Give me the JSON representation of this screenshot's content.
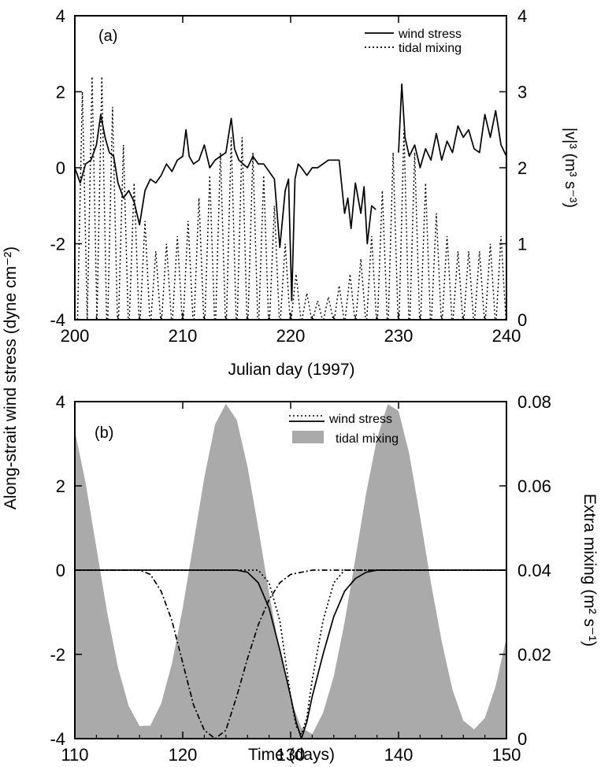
{
  "chart_data": [
    {
      "panel_label": "(a)",
      "type": "line",
      "xlabel": "Julian day (1997)",
      "xlim": [
        200,
        240
      ],
      "x_ticks": [
        200,
        210,
        220,
        230,
        240
      ],
      "ylim": [
        -4,
        4
      ],
      "y_ticks": [
        -4,
        -2,
        0,
        2,
        4
      ],
      "y2label": "|v|³ (m³ s⁻³)",
      "y2lim": [
        0,
        4
      ],
      "y2_ticks": [
        0,
        1,
        2,
        3,
        4
      ],
      "legend": [
        "wind stress",
        "tidal mixing"
      ],
      "legend_position": "top-right",
      "series": [
        {
          "name": "wind stress",
          "axis": "left",
          "style": "solid",
          "segments": [
            {
              "x": [
                200,
                200.5,
                201,
                201.5,
                202,
                202.4,
                202.8,
                203.2,
                203.6,
                204,
                204.5,
                205,
                205.5,
                206,
                206.5,
                207,
                207.5,
                208,
                208.5,
                209,
                209.5,
                210,
                210.3,
                210.6,
                211,
                211.5,
                212,
                212.5,
                213,
                213.5,
                214,
                214.5,
                214.8,
                215.2,
                215.6,
                216,
                216.5,
                217,
                217.5,
                218,
                218.5,
                219,
                219.5,
                219.8,
                220.1,
                220.4,
                220.7,
                221,
                221.5,
                222,
                222.5,
                223,
                223.5,
                224,
                224.5,
                225,
                225.3,
                225.6,
                226,
                226.5,
                226.8,
                227.1,
                227.5,
                227.9
              ],
              "y": [
                0.0,
                -0.4,
                0.1,
                0.2,
                0.6,
                1.4,
                0.8,
                0.4,
                0.3,
                -0.4,
                -0.8,
                -0.6,
                -0.9,
                -1.5,
                -0.6,
                -0.3,
                -0.4,
                -0.2,
                0.1,
                -0.1,
                0.2,
                0.3,
                1.0,
                0.3,
                0.1,
                0.2,
                0.6,
                0.0,
                0.2,
                0.3,
                0.4,
                1.3,
                0.5,
                0.2,
                0.1,
                0.0,
                0.3,
                0.1,
                0.1,
                -0.1,
                -0.3,
                -2.1,
                -0.6,
                -0.3,
                -3.5,
                -0.3,
                0.1,
                0.0,
                -0.2,
                0.0,
                0.0,
                0.1,
                0.2,
                0.2,
                0.2,
                -1.2,
                -0.8,
                -1.6,
                -0.4,
                -1.2,
                -0.5,
                -2.0,
                -1.0,
                -1.1
              ]
            },
            {
              "x": [
                230,
                230.3,
                230.6,
                231,
                231.5,
                232,
                232.5,
                233,
                233.5,
                234,
                234.5,
                235,
                235.5,
                236,
                236.5,
                237,
                237.5,
                238,
                238.5,
                239,
                239.5,
                240
              ],
              "y": [
                0.4,
                2.2,
                0.8,
                0.3,
                0.6,
                0.0,
                0.5,
                0.2,
                0.9,
                0.2,
                0.7,
                0.4,
                1.1,
                0.8,
                1.0,
                0.5,
                0.4,
                1.4,
                0.8,
                1.5,
                0.6,
                0.3
              ]
            }
          ]
        },
        {
          "name": "tidal mixing",
          "axis": "right",
          "style": "dotted",
          "peak_days": [
            200.7,
            201.6,
            202.5,
            203.5,
            204.5,
            205.5,
            206.5,
            207.5,
            208.5,
            209.5,
            210.5,
            211.5,
            212.5,
            213.5,
            214.5,
            215.5,
            216.5,
            217.5,
            218.5,
            219.5,
            220.5,
            221.5,
            222.5,
            223.5,
            224.5,
            225.5,
            226.5,
            227.5,
            228.5,
            229.5,
            230.5,
            231.5,
            232.5,
            233.5,
            234.5,
            235.5,
            236.5,
            237.5,
            238.5,
            239.5
          ],
          "peak_values": [
            3.0,
            3.2,
            3.2,
            2.8,
            2.3,
            1.8,
            1.3,
            0.9,
            1.0,
            1.1,
            1.3,
            1.6,
            1.9,
            2.2,
            2.4,
            2.4,
            2.2,
            1.9,
            1.5,
            1.0,
            0.6,
            0.35,
            0.25,
            0.3,
            0.45,
            0.6,
            0.8,
            1.1,
            1.7,
            2.2,
            2.5,
            2.2,
            1.8,
            1.4,
            1.1,
            0.9,
            0.9,
            0.9,
            1.0,
            1.1
          ]
        }
      ]
    },
    {
      "panel_label": "(b)",
      "type": "line",
      "xlabel": "Time (days)",
      "xlim": [
        110,
        150
      ],
      "x_ticks": [
        110,
        120,
        130,
        140,
        150
      ],
      "ylim": [
        -4,
        4
      ],
      "y_ticks": [
        -4,
        -2,
        0,
        2,
        4
      ],
      "y2label": "Extra mixing (m² s⁻¹)",
      "y2lim": [
        0,
        0.08
      ],
      "y2_ticks": [
        0,
        0.02,
        0.04,
        0.06,
        0.08
      ],
      "legend": [
        "wind stress",
        "tidal mixing"
      ],
      "legend_position": "top-center",
      "series": [
        {
          "name": "tidal mixing",
          "axis": "right",
          "style": "filled-area",
          "x": [
            110,
            111,
            112,
            113,
            114,
            115,
            116,
            117,
            118,
            119,
            120,
            121,
            122,
            123,
            124,
            125,
            126,
            127,
            128,
            129,
            130,
            131,
            132,
            133,
            134,
            135,
            136,
            137,
            138,
            139,
            140,
            141,
            142,
            143,
            144,
            145,
            146,
            147,
            148,
            149,
            150
          ],
          "y": [
            0.0731,
            0.0607,
            0.0453,
            0.0299,
            0.0169,
            0.0077,
            0.003,
            0.0031,
            0.0083,
            0.0178,
            0.031,
            0.0465,
            0.062,
            0.0746,
            0.0795,
            0.0757,
            0.0646,
            0.05,
            0.0346,
            0.0205,
            0.0091,
            0.0026,
            0.0011,
            0.0061,
            0.0148,
            0.0276,
            0.0428,
            0.0583,
            0.0712,
            0.0794,
            0.0778,
            0.0675,
            0.0526,
            0.037,
            0.0231,
            0.0116,
            0.0043,
            0.0022,
            0.0049,
            0.0125,
            0.024
          ]
        },
        {
          "name": "wind stress",
          "axis": "left",
          "style": "solid",
          "x": [
            110,
            125,
            126,
            127,
            128,
            129,
            130,
            130.5,
            131,
            131.5,
            132,
            133,
            134,
            135,
            136,
            137,
            138,
            150
          ],
          "y": [
            0,
            0,
            -0.05,
            -0.3,
            -0.9,
            -1.9,
            -3.0,
            -3.6,
            -4.0,
            -3.6,
            -3.0,
            -2.0,
            -1.1,
            -0.5,
            -0.2,
            -0.05,
            0,
            0
          ]
        },
        {
          "name": "",
          "axis": "left",
          "style": "dotted",
          "x": [
            110,
            127,
            128,
            129,
            130,
            130.5,
            131,
            131.5,
            132,
            133,
            134,
            135,
            150
          ],
          "y": [
            0,
            0,
            -0.3,
            -1.2,
            -3.0,
            -3.7,
            -3.9,
            -3.5,
            -2.6,
            -1.2,
            -0.3,
            0,
            0
          ]
        },
        {
          "name": "",
          "axis": "left",
          "style": "dash-dot",
          "x": [
            110,
            116,
            117,
            118,
            119,
            120,
            121,
            122,
            123,
            124,
            125,
            126,
            127,
            128,
            129,
            130,
            131,
            132,
            133,
            134,
            135,
            150
          ],
          "y": [
            0,
            0,
            -0.1,
            -0.5,
            -1.2,
            -2.2,
            -3.2,
            -3.8,
            -4.0,
            -3.8,
            -3.0,
            -2.1,
            -1.3,
            -0.7,
            -0.3,
            -0.1,
            -0.05,
            0,
            0,
            0,
            0,
            0
          ]
        }
      ]
    }
  ],
  "shared_ylabel": "Along-strait wind stress (dyne cm⁻²)"
}
